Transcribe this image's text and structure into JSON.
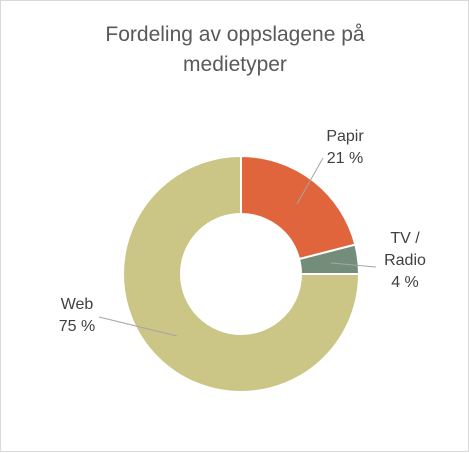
{
  "chart_data": {
    "type": "pie",
    "variant": "donut",
    "title": "Fordeling av oppslagene på medietyper",
    "title_lines": [
      "Fordeling av oppslagene på",
      "medietyper"
    ],
    "slices": [
      {
        "name": "Papir",
        "label_lines": [
          "Papir"
        ],
        "value": 21,
        "value_label": "21 %",
        "color": "#E0643C"
      },
      {
        "name": "TV / Radio",
        "label_lines": [
          "TV /",
          "Radio"
        ],
        "value": 4,
        "value_label": "4 %",
        "color": "#748C7A"
      },
      {
        "name": "Web",
        "label_lines": [
          "Web"
        ],
        "value": 75,
        "value_label": "75 %",
        "color": "#CBC686"
      }
    ],
    "legend": "none"
  }
}
